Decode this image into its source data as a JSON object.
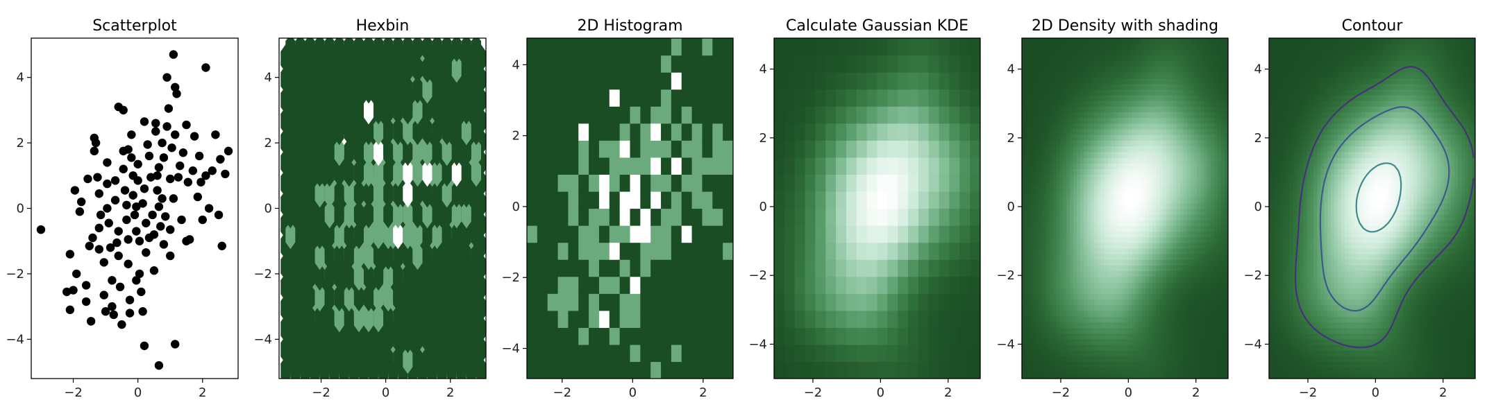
{
  "figure": {
    "background": "#ffffff",
    "colormap": [
      "#1b4d24",
      "#2f6f3a",
      "#4f9460",
      "#86c09a",
      "#c6e7d4",
      "#ffffff"
    ],
    "contour_colors": [
      "#46317a",
      "#3d5a8f",
      "#3f8a8c",
      "#58b06d",
      "#a7d84a"
    ]
  },
  "chart_data": [
    {
      "type": "scatter",
      "title": "Scatterplot",
      "xlim": [
        -3.3,
        3.1
      ],
      "ylim": [
        -5.2,
        5.2
      ],
      "xticks": [
        -2,
        0,
        2
      ],
      "yticks": [
        -4,
        -2,
        0,
        2,
        4
      ],
      "xtick_labels": [
        "−2",
        "0",
        "2"
      ],
      "ytick_labels": [
        "−4",
        "−2",
        "0",
        "2",
        "4"
      ],
      "marker_color": "#000000",
      "points": [
        [
          -3.0,
          -0.65
        ],
        [
          -2.2,
          -2.55
        ],
        [
          -2.1,
          -3.1
        ],
        [
          -2.0,
          -2.5
        ],
        [
          -1.9,
          -2.0
        ],
        [
          -2.1,
          -1.4
        ],
        [
          -1.95,
          0.55
        ],
        [
          -1.8,
          -0.1
        ],
        [
          -1.75,
          0.2
        ],
        [
          -1.6,
          -2.35
        ],
        [
          -1.6,
          -2.85
        ],
        [
          -1.45,
          -3.45
        ],
        [
          -1.5,
          -1.15
        ],
        [
          -1.4,
          -0.9
        ],
        [
          -1.35,
          2.15
        ],
        [
          -1.3,
          2.0
        ],
        [
          -1.35,
          1.75
        ],
        [
          -1.25,
          0.95
        ],
        [
          -1.2,
          0.45
        ],
        [
          -1.2,
          -0.6
        ],
        [
          -1.15,
          -0.2
        ],
        [
          -1.05,
          -1.65
        ],
        [
          -1.05,
          -2.65
        ],
        [
          -1.0,
          -3.15
        ],
        [
          -0.95,
          0.0
        ],
        [
          -0.95,
          0.75
        ],
        [
          -0.95,
          1.4
        ],
        [
          -0.9,
          -0.45
        ],
        [
          -0.85,
          -1.2
        ],
        [
          -0.8,
          -2.2
        ],
        [
          -0.8,
          -3.0
        ],
        [
          -0.75,
          -3.25
        ],
        [
          -0.7,
          0.85
        ],
        [
          -0.7,
          0.25
        ],
        [
          -0.65,
          -1.05
        ],
        [
          -0.6,
          -0.7
        ],
        [
          -0.6,
          -1.45
        ],
        [
          -0.55,
          -2.4
        ],
        [
          -0.5,
          -3.55
        ],
        [
          -0.45,
          1.75
        ],
        [
          -0.45,
          1.2
        ],
        [
          -0.4,
          0.55
        ],
        [
          -0.35,
          0.1
        ],
        [
          -0.35,
          -0.35
        ],
        [
          -0.3,
          -0.95
        ],
        [
          -0.3,
          -1.7
        ],
        [
          -0.25,
          -2.8
        ],
        [
          -0.25,
          -3.2
        ],
        [
          -0.2,
          1.55
        ],
        [
          -0.15,
          1.0
        ],
        [
          -0.15,
          0.4
        ],
        [
          -0.1,
          -0.2
        ],
        [
          -0.05,
          -0.7
        ],
        [
          -0.05,
          -2.2
        ],
        [
          0.0,
          0.85
        ],
        [
          0.0,
          1.35
        ],
        [
          0.05,
          -1.0
        ],
        [
          0.05,
          -2.0
        ],
        [
          0.1,
          -2.55
        ],
        [
          0.15,
          -3.15
        ],
        [
          0.15,
          0.15
        ],
        [
          0.2,
          0.6
        ],
        [
          0.25,
          -0.45
        ],
        [
          0.25,
          -1.35
        ],
        [
          0.3,
          1.95
        ],
        [
          0.35,
          1.6
        ],
        [
          0.4,
          0.95
        ],
        [
          0.45,
          -0.2
        ],
        [
          0.5,
          -0.8
        ],
        [
          0.5,
          -1.9
        ],
        [
          0.55,
          2.35
        ],
        [
          0.55,
          2.6
        ],
        [
          0.6,
          0.55
        ],
        [
          0.65,
          1.25
        ],
        [
          0.65,
          0.05
        ],
        [
          0.7,
          -0.55
        ],
        [
          0.75,
          2.0
        ],
        [
          0.8,
          1.55
        ],
        [
          0.8,
          -1.1
        ],
        [
          0.85,
          -0.25
        ],
        [
          0.9,
          2.5
        ],
        [
          0.95,
          3.05
        ],
        [
          1.0,
          0.9
        ],
        [
          1.0,
          -0.65
        ],
        [
          1.05,
          1.85
        ],
        [
          1.1,
          0.3
        ],
        [
          1.15,
          2.25
        ],
        [
          1.2,
          3.5
        ],
        [
          1.25,
          0.95
        ],
        [
          1.3,
          1.3
        ],
        [
          1.35,
          -0.35
        ],
        [
          1.4,
          1.7
        ],
        [
          1.5,
          2.55
        ],
        [
          1.55,
          0.8
        ],
        [
          1.6,
          -0.95
        ],
        [
          1.7,
          1.15
        ],
        [
          1.75,
          2.2
        ],
        [
          1.85,
          0.35
        ],
        [
          1.9,
          1.6
        ],
        [
          1.95,
          0.8
        ],
        [
          2.0,
          -0.35
        ],
        [
          2.1,
          1.0
        ],
        [
          2.2,
          0.0
        ],
        [
          2.3,
          1.15
        ],
        [
          2.4,
          2.25
        ],
        [
          2.5,
          -0.2
        ],
        [
          2.55,
          1.5
        ],
        [
          2.7,
          1.05
        ],
        [
          2.8,
          1.75
        ],
        [
          2.6,
          -1.15
        ],
        [
          1.1,
          4.7
        ],
        [
          0.9,
          4.0
        ],
        [
          2.1,
          4.3
        ],
        [
          1.15,
          3.7
        ],
        [
          -0.6,
          3.1
        ],
        [
          -0.45,
          3.0
        ],
        [
          0.2,
          -4.2
        ],
        [
          0.65,
          -4.8
        ],
        [
          1.15,
          -4.15
        ],
        [
          0.2,
          2.65
        ],
        [
          -0.2,
          2.25
        ],
        [
          1.0,
          -1.45
        ],
        [
          1.5,
          -1.0
        ],
        [
          -0.3,
          1.8
        ],
        [
          0.6,
          1.0
        ],
        [
          0.35,
          -0.9
        ],
        [
          -1.2,
          -1.25
        ],
        [
          -1.55,
          0.9
        ],
        [
          -0.05,
          0.05
        ],
        [
          0.75,
          0.3
        ]
      ]
    },
    {
      "type": "heatmap",
      "subtype": "hexbin",
      "title": "Hexbin",
      "xlim": [
        -3.3,
        3.1
      ],
      "ylim": [
        -5.2,
        5.2
      ],
      "xticks": [
        -2,
        0,
        2
      ],
      "yticks": [
        -4,
        -2,
        0,
        2,
        4
      ],
      "xtick_labels": [
        "−2",
        "0",
        "2"
      ],
      "ytick_labels": [
        "−4",
        "−2",
        "0",
        "2",
        "4"
      ]
    },
    {
      "type": "heatmap",
      "subtype": "hist2d",
      "title": "2D Histogram",
      "xlim": [
        -3.0,
        2.85
      ],
      "ylim": [
        -4.85,
        4.75
      ],
      "xticks": [
        -2,
        0,
        2
      ],
      "yticks": [
        -4,
        -2,
        0,
        2,
        4
      ],
      "xtick_labels": [
        "−2",
        "0",
        "2"
      ],
      "ytick_labels": [
        "−4",
        "−2",
        "0",
        "2",
        "4"
      ]
    },
    {
      "type": "heatmap",
      "subtype": "kde_grid",
      "title": "Calculate Gaussian KDE",
      "xlim": [
        -3.15,
        2.95
      ],
      "ylim": [
        -5.0,
        4.9
      ],
      "xticks": [
        -2,
        0,
        2
      ],
      "yticks": [
        -4,
        -2,
        0,
        2,
        4
      ],
      "xtick_labels": [
        "−2",
        "0",
        "2"
      ],
      "ytick_labels": [
        "−4",
        "−2",
        "0",
        "2",
        "4"
      ]
    },
    {
      "type": "heatmap",
      "subtype": "kde_smooth",
      "title": "2D Density with shading",
      "xlim": [
        -3.15,
        2.95
      ],
      "ylim": [
        -5.0,
        4.9
      ],
      "xticks": [
        -2,
        0,
        2
      ],
      "yticks": [
        -4,
        -2,
        0,
        2,
        4
      ],
      "xtick_labels": [
        "−2",
        "0",
        "2"
      ],
      "ytick_labels": [
        "−4",
        "−2",
        "0",
        "2",
        "4"
      ]
    },
    {
      "type": "heatmap",
      "subtype": "kde_contour",
      "title": "Contour",
      "xlim": [
        -3.15,
        2.95
      ],
      "ylim": [
        -5.0,
        4.9
      ],
      "xticks": [
        -2,
        0,
        2
      ],
      "yticks": [
        -4,
        -2,
        0,
        2,
        4
      ],
      "xtick_labels": [
        "−2",
        "0",
        "2"
      ],
      "ytick_labels": [
        "−4",
        "−2",
        "0",
        "2",
        "4"
      ],
      "contour_levels": [
        0.012,
        0.025,
        0.045,
        0.07,
        0.095
      ]
    }
  ]
}
